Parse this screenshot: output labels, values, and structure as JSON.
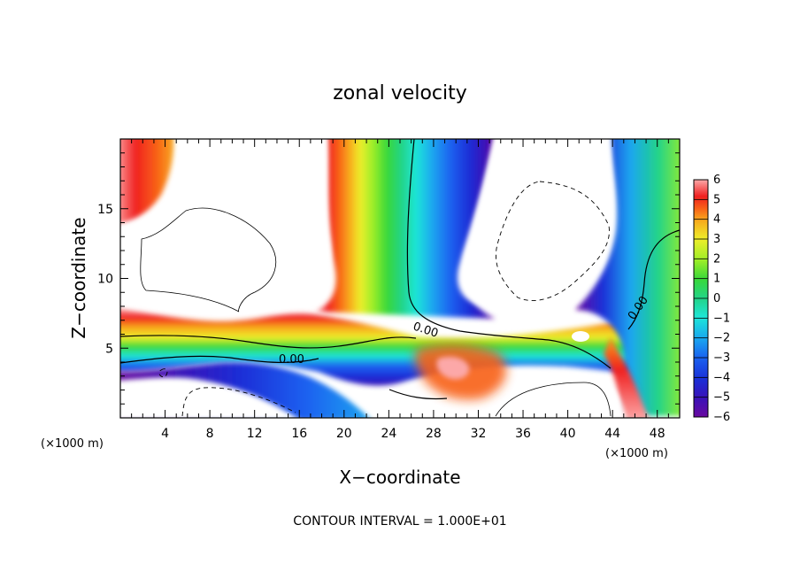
{
  "chart_data": {
    "type": "heatmap",
    "title": "zonal velocity",
    "xlabel": "X−coordinate",
    "ylabel": "Z−coordinate",
    "x_units": "(×1000 m)",
    "y_units": "(×1000 m)",
    "xlim": [
      0,
      50
    ],
    "ylim": [
      0,
      20
    ],
    "x_ticks": [
      "4",
      "8",
      "12",
      "16",
      "20",
      "24",
      "28",
      "32",
      "36",
      "40",
      "44",
      "48"
    ],
    "y_ticks": [
      "5",
      "10",
      "15"
    ],
    "x_tick_values": [
      4,
      8,
      12,
      16,
      20,
      24,
      28,
      32,
      36,
      40,
      44,
      48
    ],
    "y_tick_values": [
      5,
      10,
      15
    ],
    "colorbar": {
      "labels": [
        "6",
        "5",
        "4",
        "3",
        "2",
        "1",
        "0",
        "−1",
        "−2",
        "−3",
        "−4",
        "−5",
        "−6"
      ],
      "min": -6,
      "max": 6,
      "colors": [
        "#6a0aa0",
        "#3a12b8",
        "#1a30d8",
        "#1a62f0",
        "#1aa6f0",
        "#1ee6d8",
        "#22d488",
        "#38d83a",
        "#9cee28",
        "#eeee2a",
        "#f8a81c",
        "#f86018",
        "#f02020",
        "#f86868",
        "#fca8a8"
      ]
    },
    "contour_labels": [
      "0.00",
      "0.00",
      "0.00"
    ],
    "footer": "CONTOUR INTERVAL = 1.000E+01",
    "grid": false
  }
}
